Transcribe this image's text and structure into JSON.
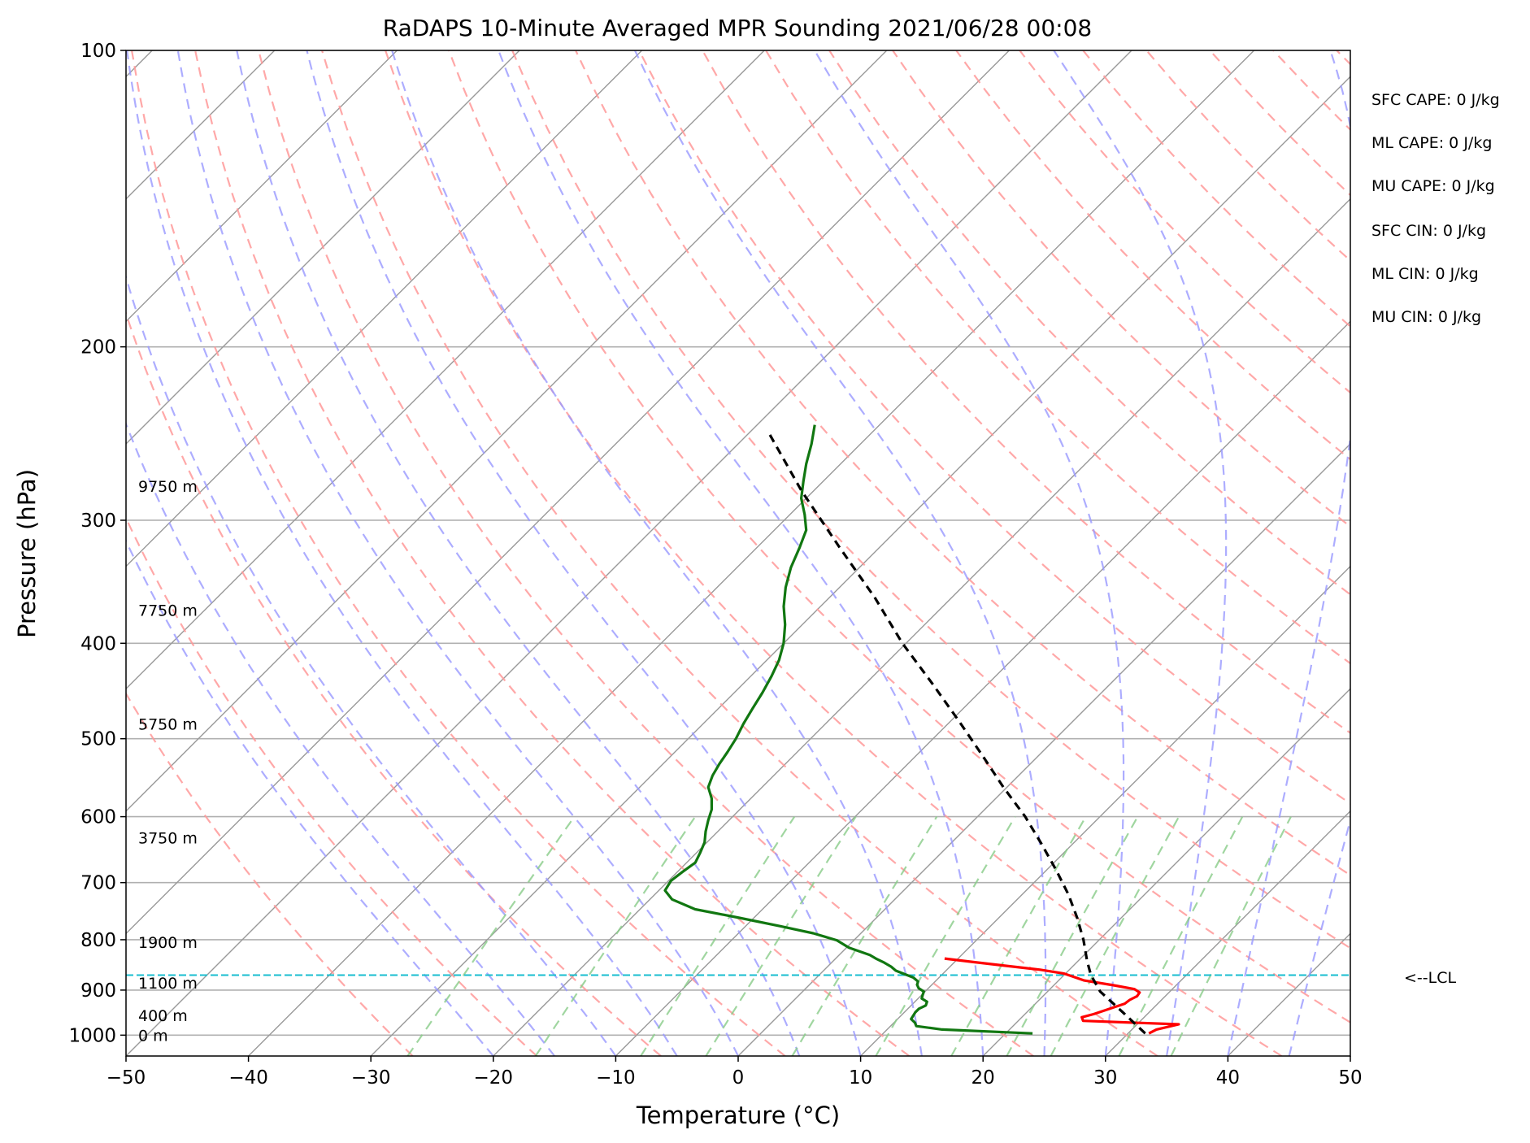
{
  "chart_data": {
    "type": "line",
    "title": "RaDAPS 10-Minute Averaged MPR Sounding 2021/06/28 00:08",
    "xlabel": "Temperature (°C)",
    "ylabel": "Pressure (hPa)",
    "xlim": [
      -50,
      50
    ],
    "ylim": [
      1050,
      100
    ],
    "y_scale": "log",
    "x_ticks": [
      -50,
      -40,
      -30,
      -20,
      -10,
      0,
      10,
      20,
      30,
      40,
      50
    ],
    "x_tick_labels": [
      "−50",
      "−40",
      "−30",
      "−20",
      "−10",
      "0",
      "10",
      "20",
      "30",
      "40",
      "50"
    ],
    "y_ticks": [
      1000,
      900,
      800,
      700,
      600,
      500,
      400,
      300,
      200,
      100
    ],
    "y_tick_labels": [
      "1000",
      "900",
      "800",
      "700",
      "600",
      "500",
      "400",
      "300",
      "200",
      "100"
    ],
    "skew": "skew-T log-P, isotherms skewed 45°",
    "grid": true,
    "series": [
      {
        "type": "temperature",
        "color": "#ff0000",
        "points": [
          [
            31.7,
            996
          ],
          [
            32.0,
            987
          ],
          [
            33.4,
            975
          ],
          [
            25.3,
            967
          ],
          [
            24.9,
            959
          ],
          [
            25.6,
            952
          ],
          [
            26.2,
            944
          ],
          [
            26.7,
            937
          ],
          [
            27.3,
            929
          ],
          [
            27.4,
            921
          ],
          [
            27.7,
            913
          ],
          [
            27.6,
            905
          ],
          [
            26.9,
            898
          ],
          [
            24.9,
            890
          ],
          [
            22.1,
            880
          ],
          [
            21.0,
            873
          ],
          [
            19.9,
            866
          ],
          [
            17.6,
            858
          ],
          [
            14.8,
            851
          ],
          [
            11.6,
            843
          ],
          [
            8.9,
            836
          ]
        ]
      },
      {
        "type": "dewpoint",
        "color": "#117711",
        "points": [
          [
            22.2,
            996
          ],
          [
            14.5,
            987
          ],
          [
            12.1,
            979
          ],
          [
            11.7,
            971
          ],
          [
            11.1,
            963
          ],
          [
            11.0,
            955
          ],
          [
            10.9,
            948
          ],
          [
            10.9,
            940
          ],
          [
            11.2,
            933
          ],
          [
            11.0,
            925
          ],
          [
            10.3,
            918
          ],
          [
            10.1,
            911
          ],
          [
            9.9,
            903
          ],
          [
            9.2,
            896
          ],
          [
            8.8,
            889
          ],
          [
            8.6,
            882
          ],
          [
            7.9,
            874
          ],
          [
            6.9,
            867
          ],
          [
            5.9,
            860
          ],
          [
            5.2,
            852
          ],
          [
            4.3,
            844
          ],
          [
            3.4,
            837
          ],
          [
            2.5,
            829
          ],
          [
            0.2,
            815
          ],
          [
            -1.4,
            801
          ],
          [
            -3.9,
            788
          ],
          [
            -7.2,
            775
          ],
          [
            -11.2,
            760
          ],
          [
            -15.5,
            745
          ],
          [
            -18.2,
            728
          ],
          [
            -19.5,
            713
          ],
          [
            -19.8,
            697
          ],
          [
            -19.6,
            683
          ],
          [
            -19.3,
            668
          ],
          [
            -19.7,
            653
          ],
          [
            -20.2,
            637
          ],
          [
            -21.0,
            621
          ],
          [
            -21.7,
            605
          ],
          [
            -22.3,
            590
          ],
          [
            -23.2,
            575
          ],
          [
            -24.4,
            560
          ],
          [
            -25.0,
            545
          ],
          [
            -25.4,
            530
          ],
          [
            -25.7,
            516
          ],
          [
            -26.1,
            500
          ],
          [
            -26.7,
            483
          ],
          [
            -27.2,
            466
          ],
          [
            -27.7,
            449
          ],
          [
            -28.3,
            432
          ],
          [
            -29.0,
            416
          ],
          [
            -30.0,
            400
          ],
          [
            -31.4,
            383
          ],
          [
            -33.0,
            367
          ],
          [
            -34.4,
            351
          ],
          [
            -35.6,
            335
          ],
          [
            -36.5,
            320
          ],
          [
            -37.4,
            307
          ],
          [
            -38.8,
            296
          ],
          [
            -40.4,
            285
          ],
          [
            -41.6,
            274
          ],
          [
            -42.8,
            263
          ],
          [
            -44.0,
            251
          ],
          [
            -45.3,
            240
          ]
        ]
      },
      {
        "type": "parcel",
        "color": "#000000",
        "dashed": true,
        "points": [
          [
            31.4,
            996
          ],
          [
            28.0,
            950
          ],
          [
            24.3,
            903
          ],
          [
            22.2,
            869
          ],
          [
            20.7,
            840
          ],
          [
            18.7,
            800
          ],
          [
            16.4,
            760
          ],
          [
            13.8,
            720
          ],
          [
            10.8,
            680
          ],
          [
            7.5,
            640
          ],
          [
            3.9,
            600
          ],
          [
            -0.3,
            560
          ],
          [
            -4.6,
            520
          ],
          [
            -9.3,
            480
          ],
          [
            -14.5,
            440
          ],
          [
            -20.3,
            400
          ],
          [
            -26.2,
            360
          ],
          [
            -33.2,
            320
          ],
          [
            -41.0,
            280
          ],
          [
            -48.3,
            245
          ]
        ]
      }
    ],
    "lcl_pressure": 869,
    "lcl_label": "<--LCL",
    "lcl_color": "#17becf",
    "height_labels": [
      {
        "label": "0 m",
        "p": 1000
      },
      {
        "label": "400 m",
        "p": 955
      },
      {
        "label": "1100 m",
        "p": 885
      },
      {
        "label": "1900 m",
        "p": 805
      },
      {
        "label": "3750 m",
        "p": 630
      },
      {
        "label": "5750 m",
        "p": 483
      },
      {
        "label": "7750 m",
        "p": 370
      },
      {
        "label": "9750 m",
        "p": 277
      }
    ],
    "annotations": [
      "SFC CAPE: 0 J/kg",
      "ML CAPE: 0 J/kg",
      "MU CAPE: 0 J/kg",
      "SFC CIN: 0 J/kg",
      "ML CIN: 0 J/kg",
      "MU CIN: 0 J/kg"
    ],
    "colors": {
      "dry_adiabat": "#ff9999",
      "moist_adiabat": "#9999ff",
      "mixing_ratio": "#88cc88",
      "isotherm": "#999999"
    }
  }
}
